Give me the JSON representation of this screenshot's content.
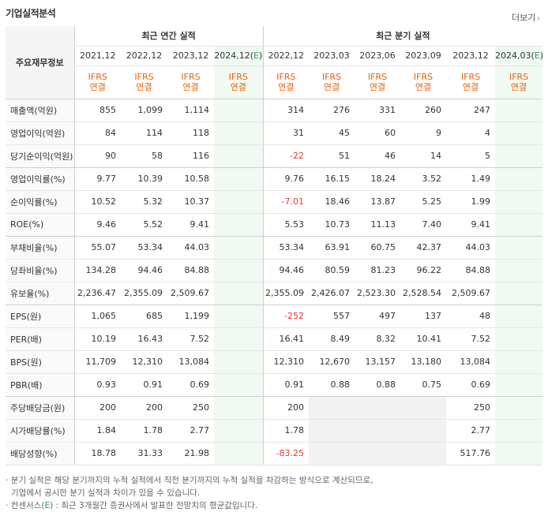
{
  "header": {
    "title": "기업실적분석",
    "more_label": "더보기",
    "more_icon": "chevron-right-icon"
  },
  "columns": {
    "label_header": "주요재무정보",
    "annual_group": "최근 연간 실적",
    "quarter_group": "최근 분기 실적",
    "annual_periods": [
      "2021,12",
      "2022,12",
      "2023,12",
      "2024,12(E)"
    ],
    "quarter_periods": [
      "2022,12",
      "2023,03",
      "2023,06",
      "2023,09",
      "2023,12",
      "2024,03(E)"
    ],
    "basis_line1": "IFRS",
    "basis_line2": "연결"
  },
  "rows": [
    {
      "label": "매출액(억원)",
      "annual": [
        "855",
        "1,099",
        "1,114",
        ""
      ],
      "quarter": [
        "314",
        "276",
        "331",
        "260",
        "247",
        ""
      ]
    },
    {
      "label": "영업이익(억원)",
      "annual": [
        "84",
        "114",
        "118",
        ""
      ],
      "quarter": [
        "31",
        "45",
        "60",
        "9",
        "4",
        ""
      ]
    },
    {
      "label": "당기순이익(억원)",
      "annual": [
        "90",
        "58",
        "116",
        ""
      ],
      "quarter": [
        "-22",
        "51",
        "46",
        "14",
        "5",
        ""
      ]
    },
    {
      "label": "영업이익률(%)",
      "annual": [
        "9.77",
        "10.39",
        "10.58",
        ""
      ],
      "quarter": [
        "9.76",
        "16.15",
        "18.24",
        "3.52",
        "1.49",
        ""
      ]
    },
    {
      "label": "순이익률(%)",
      "annual": [
        "10.52",
        "5.32",
        "10.37",
        ""
      ],
      "quarter": [
        "-7.01",
        "18.46",
        "13.87",
        "5.25",
        "1.99",
        ""
      ]
    },
    {
      "label": "ROE(%)",
      "annual": [
        "9.46",
        "5.52",
        "9.41",
        ""
      ],
      "quarter": [
        "5.53",
        "10.73",
        "11.13",
        "7.40",
        "9.41",
        ""
      ]
    },
    {
      "label": "부채비율(%)",
      "annual": [
        "55.07",
        "53.34",
        "44.03",
        ""
      ],
      "quarter": [
        "53.34",
        "63.91",
        "60.75",
        "42.37",
        "44.03",
        ""
      ]
    },
    {
      "label": "당좌비율(%)",
      "annual": [
        "134.28",
        "94.46",
        "84.88",
        ""
      ],
      "quarter": [
        "94.46",
        "80.59",
        "81.23",
        "96.22",
        "84.88",
        ""
      ]
    },
    {
      "label": "유보율(%)",
      "annual": [
        "2,236.47",
        "2,355.09",
        "2,509.67",
        ""
      ],
      "quarter": [
        "2,355.09",
        "2,426.07",
        "2,523.30",
        "2,528.54",
        "2,509.67",
        ""
      ]
    },
    {
      "label": "EPS(원)",
      "annual": [
        "1,065",
        "685",
        "1,199",
        ""
      ],
      "quarter": [
        "-252",
        "557",
        "497",
        "137",
        "48",
        ""
      ]
    },
    {
      "label": "PER(배)",
      "annual": [
        "10.19",
        "16.43",
        "7.52",
        ""
      ],
      "quarter": [
        "16.41",
        "8.49",
        "8.32",
        "10.41",
        "7.52",
        ""
      ]
    },
    {
      "label": "BPS(원)",
      "annual": [
        "11,709",
        "12,310",
        "13,084",
        ""
      ],
      "quarter": [
        "12,310",
        "12,670",
        "13,157",
        "13,180",
        "13,084",
        ""
      ]
    },
    {
      "label": "PBR(배)",
      "annual": [
        "0.93",
        "0.91",
        "0.69",
        ""
      ],
      "quarter": [
        "0.91",
        "0.88",
        "0.88",
        "0.75",
        "0.69",
        ""
      ]
    },
    {
      "label": "주당배당금(원)",
      "annual": [
        "200",
        "200",
        "250",
        ""
      ],
      "quarter": [
        "200",
        "",
        "",
        "",
        "250",
        ""
      ]
    },
    {
      "label": "시가배당률(%)",
      "annual": [
        "1.84",
        "1.78",
        "2.77",
        ""
      ],
      "quarter": [
        "1.78",
        "",
        "",
        "",
        "2.77",
        ""
      ]
    },
    {
      "label": "배당성향(%)",
      "annual": [
        "18.78",
        "31.33",
        "21.98",
        ""
      ],
      "quarter": [
        "-83.25",
        "",
        "",
        "",
        "517.76",
        ""
      ]
    }
  ],
  "notes": {
    "line1": "분기 실적은 해당 분기까지의 누적 실적에서 직전 분기까지의 누적 실적을 차감하는 방식으로 계산되므로,",
    "line2": "기업에서 공시한 분기 실적과 차이가 있을 수 있습니다.",
    "line3_prefix": "컨센서스(",
    "line3_mark": "E",
    "line3_suffix": ") : 최근 3개월간 증권사에서 발표한 전망치의 평균값입니다."
  },
  "colors": {
    "estimate_bg": "#f1f9f3",
    "negative": "#e33333",
    "ifrs": "#e8620c",
    "estimate_mark": "#2f9b55",
    "empty_cell": "#f2f2f2"
  }
}
